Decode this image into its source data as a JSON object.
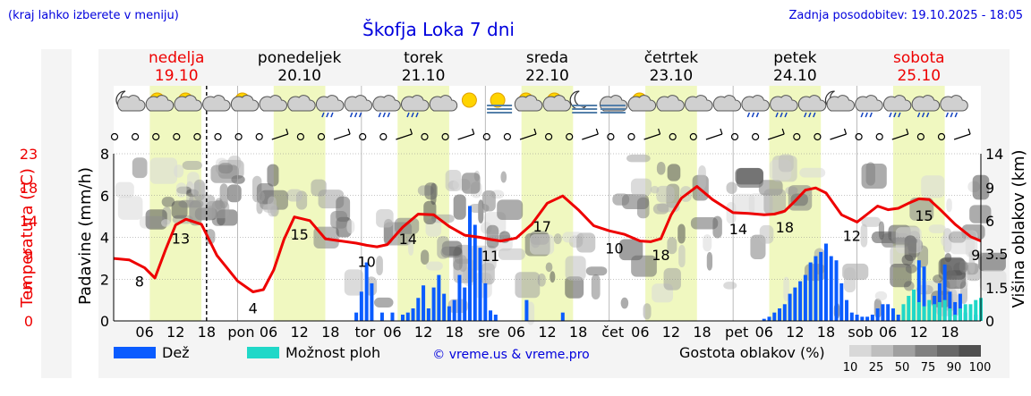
{
  "header": {
    "hint": "(kraj lahko izberete v meniju)",
    "title": "Škofja Loka 7 dni",
    "updated": "Zadnja posodobitev: 19.10.2025 - 18:05"
  },
  "colors": {
    "rain": "#0a5cff",
    "showers": "#20d8c8",
    "temperature": "#ee0000",
    "day_band": "#f0f8c0",
    "weekend_text": "#ee0000",
    "link": "#0000dd"
  },
  "days": [
    {
      "name": "nedelja",
      "date": "19.10",
      "weekend": true
    },
    {
      "name": "ponedeljek",
      "date": "20.10",
      "weekend": false
    },
    {
      "name": "torek",
      "date": "21.10",
      "weekend": false
    },
    {
      "name": "sreda",
      "date": "22.10",
      "weekend": false
    },
    {
      "name": "četrtek",
      "date": "23.10",
      "weekend": false
    },
    {
      "name": "petek",
      "date": "24.10",
      "weekend": false
    },
    {
      "name": "sobota",
      "date": "25.10",
      "weekend": true
    }
  ],
  "weather_icons": [
    "moon-cloud-icon",
    "sun-cloud-icon",
    "sun-cloud-icon",
    "cloud-icon",
    "sun-cloud-icon",
    "cloud-icon",
    "cloud-icon",
    "rain-cloud-icon",
    "rain-cloud-icon",
    "rain-cloud-icon",
    "rain-cloud-icon",
    "cloud-icon",
    "sun-icon",
    "sun-fog-icon",
    "sun-cloud-icon",
    "sun-cloud-icon",
    "moon-fog-icon",
    "fog-icon",
    "sun-cloud-icon",
    "cloud-icon",
    "cloud-icon",
    "cloud-icon",
    "rain-cloud-icon",
    "rain-cloud-icon",
    "rain-cloud-icon",
    "moon-cloud-icon",
    "rain-cloud-icon",
    "rain-cloud-icon",
    "rain-cloud-icon",
    "rain-cloud-icon"
  ],
  "chart_data": {
    "type": "line",
    "title": "Škofja Loka 7 dni",
    "hours_total": 168,
    "day_hour_ticks": [
      "06",
      "12",
      "18"
    ],
    "day_short_labels": [
      "",
      "pon",
      "tor",
      "sre",
      "čet",
      "pet",
      "sob"
    ],
    "now_hour": 18,
    "temperature": {
      "name": "Temperatura (°C)",
      "axis_ticks": [
        0,
        5,
        9,
        14,
        18,
        23
      ],
      "range": [
        0,
        23
      ],
      "hours": [
        0,
        3,
        6,
        8,
        10,
        12,
        14,
        17,
        20,
        24,
        27,
        29,
        31,
        33,
        35,
        38,
        41,
        44,
        47,
        49,
        51,
        53,
        56,
        59,
        62,
        65,
        68,
        71,
        73,
        75,
        78,
        81,
        84,
        87,
        90,
        93,
        96,
        99,
        102,
        104,
        106,
        108,
        110,
        113,
        116,
        120,
        123,
        126,
        128,
        130,
        132,
        134,
        136,
        138,
        141,
        144,
        146,
        148,
        150,
        152,
        154,
        156,
        158,
        160,
        163,
        166,
        168
      ],
      "values": [
        8.6,
        8.4,
        7.3,
        5.9,
        9.7,
        13.2,
        14.0,
        13.3,
        9.0,
        5.5,
        4.0,
        4.3,
        7.0,
        11.2,
        14.3,
        13.8,
        11.3,
        11.0,
        10.7,
        10.4,
        10.2,
        10.5,
        12.9,
        14.7,
        14.6,
        13.0,
        11.8,
        11.5,
        11.2,
        11.0,
        11.4,
        13.3,
        16.2,
        17.2,
        15.3,
        13.1,
        12.4,
        11.9,
        11.0,
        10.9,
        11.3,
        14.6,
        16.9,
        18.5,
        16.7,
        14.9,
        14.8,
        14.6,
        14.7,
        15.1,
        16.5,
        18.0,
        18.3,
        17.6,
        14.6,
        13.6,
        14.7,
        15.8,
        15.3,
        15.5,
        16.2,
        16.8,
        16.7,
        15.4,
        13.3,
        11.6,
        11.0
      ],
      "labels": [
        {
          "hour": 5,
          "text": "8"
        },
        {
          "hour": 13,
          "text": "13"
        },
        {
          "hour": 27,
          "text": "4"
        },
        {
          "hour": 36,
          "text": "15"
        },
        {
          "hour": 49,
          "text": "10"
        },
        {
          "hour": 57,
          "text": "14"
        },
        {
          "hour": 73,
          "text": "11"
        },
        {
          "hour": 83,
          "text": "17"
        },
        {
          "hour": 97,
          "text": "10"
        },
        {
          "hour": 106,
          "text": "18"
        },
        {
          "hour": 121,
          "text": "14"
        },
        {
          "hour": 130,
          "text": "18"
        },
        {
          "hour": 143,
          "text": "12"
        },
        {
          "hour": 157,
          "text": "15"
        },
        {
          "hour": 167,
          "text": "9"
        }
      ]
    },
    "precipitation": {
      "name": "Padavine (mm/h)",
      "axis_ticks": [
        0,
        2,
        4,
        6,
        8
      ],
      "range": [
        0,
        8
      ],
      "rain_series_name": "Dež",
      "rain": [
        [
          47,
          0.4
        ],
        [
          48,
          1.4
        ],
        [
          49,
          2.8
        ],
        [
          50,
          1.8
        ],
        [
          52,
          0.4
        ],
        [
          54,
          0.4
        ],
        [
          56,
          0.3
        ],
        [
          57,
          0.4
        ],
        [
          58,
          0.6
        ],
        [
          59,
          1.1
        ],
        [
          60,
          1.7
        ],
        [
          61,
          0.6
        ],
        [
          62,
          1.6
        ],
        [
          63,
          2.2
        ],
        [
          64,
          1.3
        ],
        [
          65,
          0.7
        ],
        [
          66,
          1.0
        ],
        [
          67,
          2.2
        ],
        [
          68,
          1.6
        ],
        [
          69,
          5.5
        ],
        [
          70,
          4.6
        ],
        [
          71,
          3.5
        ],
        [
          72,
          1.8
        ],
        [
          73,
          0.5
        ],
        [
          74,
          0.3
        ],
        [
          80,
          1.0
        ],
        [
          87,
          0.4
        ],
        [
          126,
          0.1
        ],
        [
          127,
          0.2
        ],
        [
          128,
          0.4
        ],
        [
          129,
          0.6
        ],
        [
          130,
          0.8
        ],
        [
          131,
          1.3
        ],
        [
          132,
          1.6
        ],
        [
          133,
          1.9
        ],
        [
          134,
          2.2
        ],
        [
          135,
          2.8
        ],
        [
          136,
          3.1
        ],
        [
          137,
          3.3
        ],
        [
          138,
          3.7
        ],
        [
          139,
          3.1
        ],
        [
          140,
          2.9
        ],
        [
          141,
          1.8
        ],
        [
          142,
          1.0
        ],
        [
          143,
          0.4
        ],
        [
          144,
          0.3
        ],
        [
          145,
          0.2
        ],
        [
          146,
          0.2
        ],
        [
          147,
          0.3
        ],
        [
          148,
          0.6
        ],
        [
          149,
          0.8
        ],
        [
          150,
          0.8
        ],
        [
          151,
          0.6
        ],
        [
          152,
          0.3
        ],
        [
          156,
          2.9
        ],
        [
          157,
          2.6
        ],
        [
          159,
          1.2
        ],
        [
          160,
          1.8
        ],
        [
          161,
          2.7
        ],
        [
          162,
          1.4
        ],
        [
          163,
          0.9
        ],
        [
          164,
          1.3
        ],
        [
          165,
          0.4
        ],
        [
          167,
          0.3
        ],
        [
          168,
          0.3
        ]
      ],
      "showers_series_name": "Možnost ploh",
      "showers": [
        [
          153,
          0.8
        ],
        [
          154,
          1.2
        ],
        [
          155,
          1.5
        ],
        [
          156,
          0.9
        ],
        [
          157,
          0.7
        ],
        [
          158,
          1.0
        ],
        [
          159,
          0.8
        ],
        [
          160,
          0.9
        ],
        [
          161,
          1.0
        ],
        [
          162,
          0.6
        ],
        [
          163,
          0.3
        ],
        [
          164,
          0.6
        ],
        [
          165,
          0.8
        ],
        [
          166,
          0.8
        ],
        [
          167,
          1.0
        ],
        [
          168,
          1.1
        ]
      ]
    },
    "cloud_height": {
      "name": "Višina oblakov (km)",
      "axis_ticks": [
        0,
        1.5,
        3.5,
        6.0,
        9.0,
        14
      ],
      "range": [
        0,
        14
      ]
    },
    "cloud_density_legend": {
      "title": "Gostota oblakov (%)",
      "levels": [
        "10",
        "25",
        "50",
        "75",
        "90",
        "100"
      ],
      "colors": [
        "#d8d8d8",
        "#bebebe",
        "#a0a0a0",
        "#808080",
        "#686868",
        "#505050"
      ]
    },
    "legend": {
      "rain": "Dež",
      "showers": "Možnost ploh",
      "credit": "© vreme.us & vreme.pro"
    }
  }
}
